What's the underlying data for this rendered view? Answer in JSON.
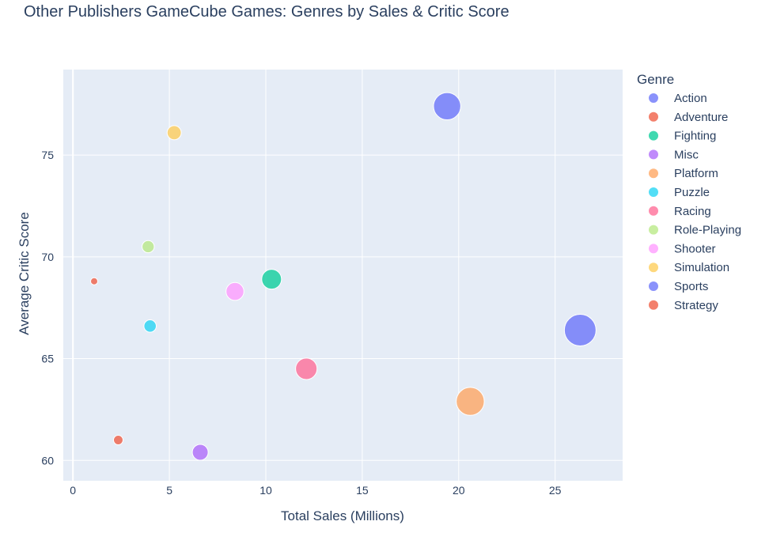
{
  "chart_data": {
    "type": "scatter",
    "title": "Other Publishers GameCube Games: Genres by Sales & Critic Score",
    "xlabel": "Total Sales (Millions)",
    "ylabel": "Average Critic Score",
    "xlim": [
      -0.5,
      28.5
    ],
    "ylim": [
      59,
      79.2
    ],
    "xticks": [
      0,
      5,
      10,
      15,
      20,
      25
    ],
    "yticks": [
      60,
      65,
      70,
      75
    ],
    "grid": true,
    "legend_title": "Genre",
    "legend_position": "right",
    "series": [
      {
        "name": "Action",
        "color": "#636efa",
        "x": 19.4,
        "y": 77.4,
        "size": 19.4
      },
      {
        "name": "Adventure",
        "color": "#ef553b",
        "x": 2.35,
        "y": 61.0,
        "size": 2.35
      },
      {
        "name": "Fighting",
        "color": "#00cc96",
        "x": 10.3,
        "y": 68.9,
        "size": 10.3
      },
      {
        "name": "Misc",
        "color": "#ab63fa",
        "x": 6.6,
        "y": 60.4,
        "size": 6.6
      },
      {
        "name": "Platform",
        "color": "#ffa15a",
        "x": 20.6,
        "y": 62.9,
        "size": 20.6
      },
      {
        "name": "Puzzle",
        "color": "#19d3f3",
        "x": 4.0,
        "y": 66.6,
        "size": 4.0
      },
      {
        "name": "Racing",
        "color": "#ff6692",
        "x": 12.1,
        "y": 64.5,
        "size": 12.1
      },
      {
        "name": "Role-Playing",
        "color": "#b6e880",
        "x": 3.9,
        "y": 70.5,
        "size": 3.9
      },
      {
        "name": "Shooter",
        "color": "#ff97ff",
        "x": 8.4,
        "y": 68.3,
        "size": 8.4
      },
      {
        "name": "Simulation",
        "color": "#fecb52",
        "x": 5.25,
        "y": 76.1,
        "size": 5.25
      },
      {
        "name": "Sports",
        "color": "#636efa",
        "x": 26.3,
        "y": 66.4,
        "size": 26.3
      },
      {
        "name": "Strategy",
        "color": "#ef553b",
        "x": 1.1,
        "y": 68.8,
        "size": 1.1
      }
    ]
  }
}
